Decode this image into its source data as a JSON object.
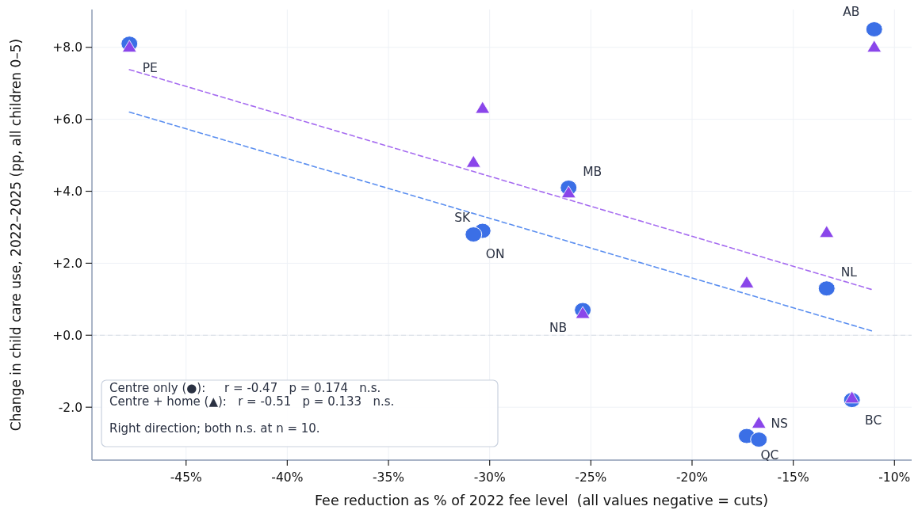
{
  "chart_data": {
    "type": "scatter",
    "xlabel": "Fee reduction as % of 2022 fee level  (all values negative = cuts)",
    "ylabel": "Change in child care use, 2022–2025 (pp, all children 0–5)",
    "xlim": [
      -49.65,
      -9.15
    ],
    "ylim": [
      -3.47,
      9.05
    ],
    "xticks": [
      {
        "value": -45,
        "label": "-45%"
      },
      {
        "value": -40,
        "label": "-40%"
      },
      {
        "value": -35,
        "label": "-35%"
      },
      {
        "value": -30,
        "label": "-30%"
      },
      {
        "value": -25,
        "label": "-25%"
      },
      {
        "value": -20,
        "label": "-20%"
      },
      {
        "value": -15,
        "label": "-15%"
      },
      {
        "value": -10,
        "label": "-10%"
      }
    ],
    "yticks": [
      {
        "value": -2,
        "label": "-2.0"
      },
      {
        "value": 0,
        "label": "+0.0"
      },
      {
        "value": 2,
        "label": "+2.0"
      },
      {
        "value": 4,
        "label": "+4.0"
      },
      {
        "value": 6,
        "label": "+6.0"
      },
      {
        "value": 8,
        "label": "+8.0"
      }
    ],
    "grid": true,
    "series": [
      {
        "type": "line",
        "color": "#5b8ff0",
        "line_style": "dashed",
        "marker": "none",
        "x": [
          -47.8,
          -11.0
        ],
        "values": [
          6.2,
          0.1
        ]
      },
      {
        "type": "line",
        "color": "#a66cf0",
        "line_style": "dashed",
        "marker": "none",
        "x": [
          -47.8,
          -11.0
        ],
        "values": [
          7.38,
          1.25
        ]
      },
      {
        "color": "#3b6fe6",
        "marker": "circle",
        "x": [
          -47.8,
          -11.0,
          -30.35,
          -30.8,
          -26.1,
          -25.4,
          -13.35,
          -17.3,
          -16.7,
          -12.1
        ],
        "values": [
          8.1,
          8.5,
          2.9,
          2.8,
          4.1,
          0.7,
          1.3,
          -2.8,
          -2.9,
          -1.8
        ]
      },
      {
        "color": "#8a46ea",
        "marker": "triangle",
        "x": [
          -47.8,
          -11.0,
          -30.35,
          -30.8,
          -26.1,
          -25.4,
          -13.35,
          -17.3,
          -16.7,
          -12.1
        ],
        "values": [
          8.0,
          8.0,
          6.3,
          4.8,
          3.95,
          0.6,
          2.85,
          1.45,
          -2.45,
          -1.75
        ]
      }
    ],
    "ref_lines": [
      {
        "axis": "y",
        "value": 0,
        "color": "#d6dbe3",
        "line_style": "dashed"
      }
    ],
    "annotations": [
      {
        "text": "PE",
        "x": -47.8,
        "y": 8.1
      },
      {
        "text": "AB",
        "x": -11.0,
        "y": 8.5
      },
      {
        "text": "ON",
        "x": -30.35,
        "y": 2.9
      },
      {
        "text": "SK",
        "x": -30.8,
        "y": 2.8
      },
      {
        "text": "MB",
        "x": -26.1,
        "y": 4.1
      },
      {
        "text": "NB",
        "x": -25.4,
        "y": 0.7
      },
      {
        "text": "NL",
        "x": -13.35,
        "y": 1.3
      },
      {
        "text": "QC",
        "x": -17.3,
        "y": -2.8
      },
      {
        "text": "NS",
        "x": -16.7,
        "y": -2.9
      },
      {
        "text": "BC",
        "x": -12.1,
        "y": -1.8
      },
      "Centre only (●):     r = -0.47   p = 0.174   n.s.",
      "Centre + home (▲):   r = -0.51   p = 0.133   n.s.",
      "Right direction; both n.s. at n = 10."
    ]
  }
}
